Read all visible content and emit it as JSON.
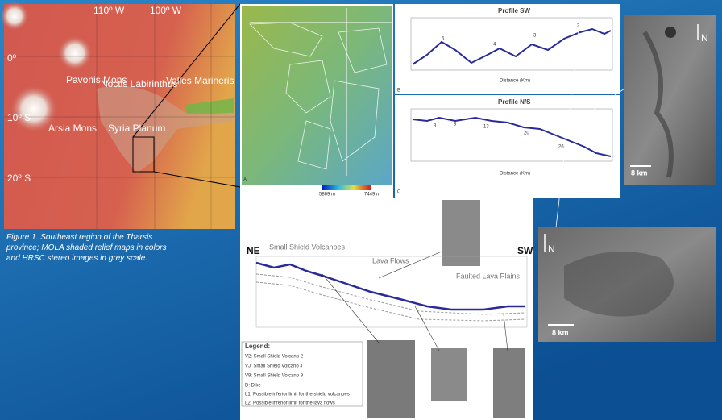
{
  "map": {
    "lon_labels": [
      "110º W",
      "100º W"
    ],
    "lat_labels": [
      "0º",
      "10º S",
      "20º S"
    ],
    "places": [
      "Pavonis Mons",
      "Noctis Labirinthus",
      "Valles Marineris",
      "Arsia Mons",
      "Syria Planum"
    ]
  },
  "caption": [
    "Figure 1. Southeast region of the Tharsis",
    "province; MOLA shaded relief maps in colors",
    "and HRSC stereo images in grey scale."
  ],
  "panel_a": {
    "letter": "A",
    "scale_min": "5869 m",
    "scale_max": "7449 m"
  },
  "panel_b": {
    "title": "Profile SW",
    "labels": [
      "5",
      "4",
      "3",
      "2"
    ],
    "x_title": "Distance (Km)",
    "letter": "B"
  },
  "panel_c": {
    "title": "Profile N/S",
    "labels": [
      "3",
      "8",
      "13",
      "20",
      "26"
    ],
    "x_title": "Distance (Km)",
    "letter": "C"
  },
  "images": {
    "scale": "8 km",
    "north": "N"
  },
  "cross_section": {
    "ne": "NE",
    "sw": "SW",
    "zones": [
      "Small Shield Volcanoes",
      "Lava Flows",
      "Faulted Lava Plains"
    ],
    "legend_title": "Legend:",
    "legend": [
      "V2: Small Shield Volcano 2",
      "VJ: Small Shield Volcano J",
      "V9: Small Shield Volcano 9",
      "D: Dike",
      "L1: Possible inferior limit for the shield volcanoes",
      "L2: Possible inferior limit for the lava flows"
    ]
  }
}
